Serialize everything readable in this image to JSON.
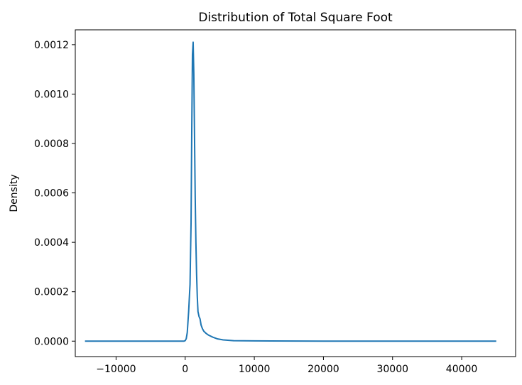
{
  "chart_data": {
    "type": "line",
    "title": "Distribution of Total Square Foot",
    "xlabel": "",
    "ylabel": "Density",
    "xlim": [
      -15900,
      47800
    ],
    "ylim": [
      -6.25e-05,
      0.00126
    ],
    "x_ticks": [
      -10000,
      0,
      10000,
      20000,
      30000,
      40000
    ],
    "x_tick_labels": [
      "−10000",
      "0",
      "10000",
      "20000",
      "30000",
      "40000"
    ],
    "y_ticks": [
      0.0,
      0.0002,
      0.0004,
      0.0006,
      0.0008,
      0.001,
      0.0012
    ],
    "y_tick_labels": [
      "0.0000",
      "0.0002",
      "0.0004",
      "0.0006",
      "0.0008",
      "0.0010",
      "0.0012"
    ],
    "grid": false,
    "line_color": "#1f77b4",
    "series": [
      {
        "x": [
          -14500,
          -5000,
          -1000,
          -200,
          0,
          150,
          300,
          500,
          700,
          850,
          950,
          1050,
          1150,
          1250,
          1350,
          1450,
          1550,
          1650,
          1750,
          1850,
          2000,
          2150,
          2300,
          2500,
          2700,
          3000,
          3400,
          4000,
          4700,
          5500,
          7000,
          10000,
          20000,
          30000,
          45000
        ],
        "y": [
          0.0,
          0.0,
          0.0,
          0.0,
          2e-06,
          1e-05,
          3.5e-05,
          0.00012,
          0.00023,
          0.00048,
          0.00085,
          0.00116,
          0.00121,
          0.00108,
          0.00083,
          0.00058,
          0.0004,
          0.00027,
          0.00018,
          0.00012,
          0.0001,
          9e-05,
          6.5e-05,
          5e-05,
          4e-05,
          3.2e-05,
          2.4e-05,
          1.6e-05,
          9e-06,
          5e-06,
          2e-06,
          1e-06,
          0.0,
          0.0,
          0.0
        ]
      }
    ]
  }
}
